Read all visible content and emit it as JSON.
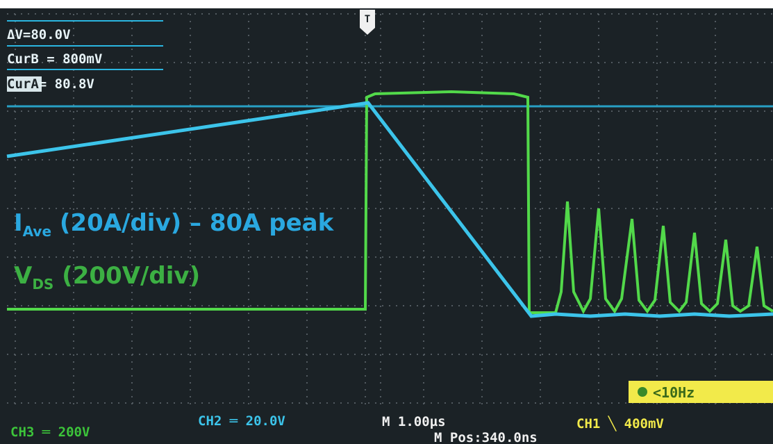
{
  "cursor_readout": {
    "delta": "ΔV=80.0V",
    "cur_b": "CurB = 800mV",
    "cur_a_label": "CurA",
    "cur_a_value": "= 80.8V"
  },
  "trigger_marker": "T",
  "annotations": {
    "current": {
      "symbol": "I",
      "subscript": "Ave",
      "text": " (20A/div) – 80A peak"
    },
    "voltage": {
      "symbol": "V",
      "subscript": "DS",
      "text": " (200V/div)"
    }
  },
  "status_bar": {
    "ch3": "CH3 ═ 200V",
    "ch2": "CH2 ═ 20.0V",
    "timebase": "M 1.00µs",
    "position": "M Pos:340.0ns",
    "ch1": "CH1 ╲ 400mV",
    "trigger_freq": "<10Hz"
  }
}
